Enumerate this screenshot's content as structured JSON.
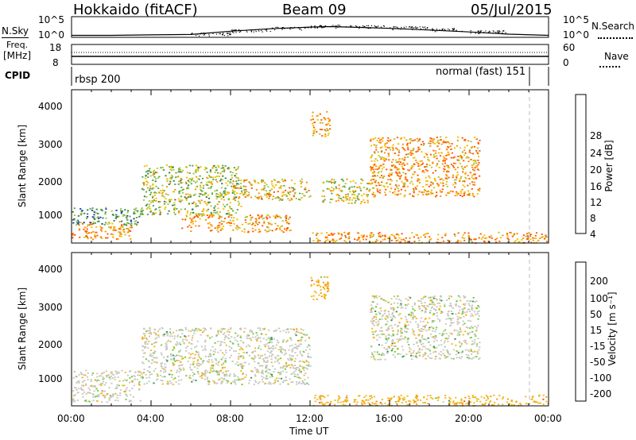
{
  "header": {
    "station": "Hokkaido (fitACF)",
    "beam": "Beam 09",
    "date": "05/Jul/2015"
  },
  "noise_panel": {
    "left_label": "N.Sky",
    "right_label": "N.Search",
    "left_ticks": [
      "10^5",
      "10^0"
    ],
    "right_ticks": [
      "10^5",
      "10^0"
    ]
  },
  "freq_panel": {
    "left_label_1": "Freq.",
    "left_label_2": "[MHz]",
    "right_label": "Nave",
    "left_ticks": [
      "18",
      "8"
    ],
    "right_ticks": [
      "60",
      "0"
    ]
  },
  "cpid_panel": {
    "label": "CPID",
    "mode_left": "rbsp 200",
    "mode_right": "normal (fast) 151"
  },
  "power_panel": {
    "ylabel": "Slant Range [km]",
    "yticks": [
      "4000",
      "3000",
      "2000",
      "1000"
    ],
    "cbar_label": "Power [dB]",
    "cbar_ticks": [
      "28",
      "24",
      "20",
      "16",
      "12",
      "8",
      "4"
    ]
  },
  "velocity_panel": {
    "ylabel": "Slant Range [km]",
    "yticks": [
      "4000",
      "3000",
      "2000",
      "1000"
    ],
    "cbar_label": "Velocity [m s⁻¹]",
    "cbar_ticks": [
      "200",
      "100",
      "50",
      "15",
      "-15",
      "-50",
      "-100",
      "-200"
    ]
  },
  "xaxis": {
    "xlabel": "Time UT",
    "xticks": [
      "00:00",
      "04:00",
      "08:00",
      "12:00",
      "16:00",
      "20:00",
      "00:00"
    ]
  },
  "chart_data": [
    {
      "type": "heatmap",
      "title": "Power [dB]",
      "xlabel": "Time UT",
      "ylabel": "Slant Range [km]",
      "xlim": [
        0,
        24
      ],
      "ylim": [
        180,
        4500
      ],
      "colorbar_values": [
        4,
        8,
        12,
        16,
        20,
        24,
        28
      ],
      "colormap": [
        "#0000ff",
        "#1e3ca8",
        "#2f7f4c",
        "#5aa54a",
        "#9fc84a",
        "#f0c000",
        "#ff9000",
        "#ff5a00",
        "#ff1e00"
      ],
      "echo_regions": [
        {
          "t": [
            0.0,
            3.0
          ],
          "range_km": [
            300,
            800
          ],
          "power_db": 26
        },
        {
          "t": [
            0.0,
            3.5
          ],
          "range_km": [
            700,
            1200
          ],
          "power_db": 12
        },
        {
          "t": [
            3.5,
            8.5
          ],
          "range_km": [
            1000,
            2400
          ],
          "power_db": 18
        },
        {
          "t": [
            5.5,
            11.0
          ],
          "range_km": [
            500,
            1000
          ],
          "power_db": 26
        },
        {
          "t": [
            8.0,
            12.0
          ],
          "range_km": [
            1400,
            2000
          ],
          "power_db": 22
        },
        {
          "t": [
            12.0,
            13.0
          ],
          "range_km": [
            3200,
            3900
          ],
          "power_db": 25
        },
        {
          "t": [
            12.5,
            15.0
          ],
          "range_km": [
            1300,
            2000
          ],
          "power_db": 20
        },
        {
          "t": [
            15.0,
            20.5
          ],
          "range_km": [
            1500,
            3200
          ],
          "power_db": 26
        },
        {
          "t": [
            12.0,
            24.0
          ],
          "range_km": [
            200,
            500
          ],
          "power_db": 27
        }
      ]
    },
    {
      "type": "heatmap",
      "title": "Velocity [m s⁻¹]",
      "xlabel": "Time UT",
      "ylabel": "Slant Range [km]",
      "xlim": [
        0,
        24
      ],
      "ylim": [
        180,
        4500
      ],
      "colorbar_values": [
        -200,
        -100,
        -50,
        -15,
        15,
        50,
        100,
        200
      ],
      "colormap": [
        "#ff0000",
        "#ff5000",
        "#ff9900",
        "#f2b81d",
        "#c8c8c0",
        "#6dcd3c",
        "#2f8f4c",
        "#1e3c9c",
        "#0000ff"
      ],
      "echo_regions": [
        {
          "t": [
            0.0,
            3.5
          ],
          "range_km": [
            300,
            1200
          ],
          "velocity_ms": 0
        },
        {
          "t": [
            3.5,
            12.0
          ],
          "range_km": [
            800,
            2400
          ],
          "velocity_ms": 0
        },
        {
          "t": [
            12.0,
            13.0
          ],
          "range_km": [
            3200,
            3900
          ],
          "velocity_ms": -40
        },
        {
          "t": [
            15.0,
            20.5
          ],
          "range_km": [
            1500,
            3300
          ],
          "velocity_ms": 0
        },
        {
          "t": [
            12.0,
            24.0
          ],
          "range_km": [
            200,
            500
          ],
          "velocity_ms": -40
        }
      ]
    },
    {
      "type": "line",
      "title": "N.Sky",
      "xlim": [
        0,
        24
      ],
      "yscale": "log",
      "ylim": [
        1,
        100000
      ],
      "series": [
        {
          "x": [
            0,
            2,
            4,
            6,
            8,
            10,
            12,
            13,
            14,
            16,
            18,
            20,
            22,
            24
          ],
          "values": [
            3,
            3,
            4,
            5,
            30,
            120,
            300,
            400,
            300,
            150,
            60,
            20,
            6,
            3
          ]
        }
      ]
    }
  ]
}
